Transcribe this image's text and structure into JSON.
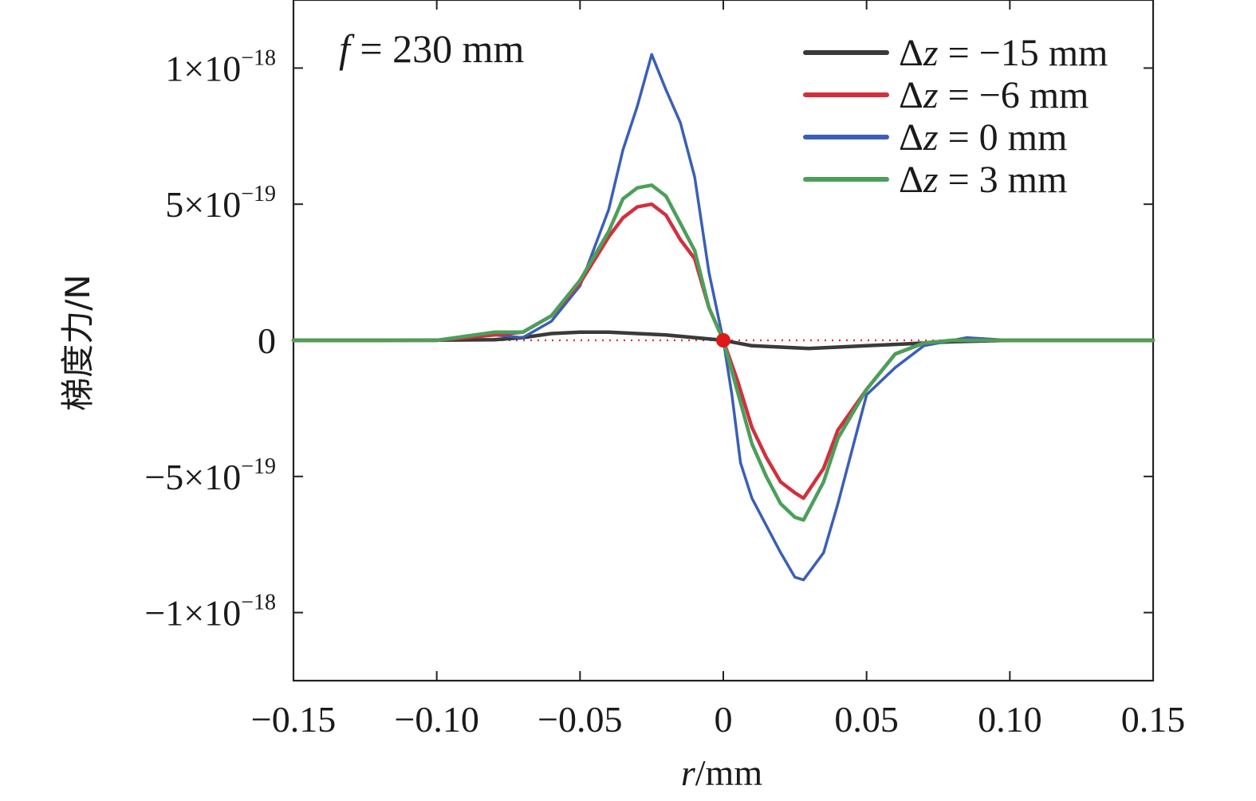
{
  "chart_data": {
    "type": "line",
    "annotation": {
      "f_symbol": "f",
      "f_text": " = 230 mm"
    },
    "xlabel": {
      "var": "r",
      "unit": "/mm"
    },
    "ylabel": "梯度力/N",
    "xlim": [
      -0.15,
      0.15
    ],
    "ylim": [
      -1.25e-18,
      1.25e-18
    ],
    "x_ticks": [
      -0.15,
      -0.1,
      -0.05,
      0,
      0.05,
      0.1,
      0.15
    ],
    "x_tick_labels": [
      "−0.15",
      "−0.10",
      "−0.05",
      "0",
      "0.05",
      "0.10",
      "0.15"
    ],
    "y_ticks": [
      {
        "value": 1e-18,
        "mantissa": "1×10",
        "exp": "−18"
      },
      {
        "value": 5e-19,
        "mantissa": "5×10",
        "exp": "−19"
      },
      {
        "value": 0,
        "mantissa": "0",
        "exp": ""
      },
      {
        "value": -5e-19,
        "mantissa": "−5×10",
        "exp": "−19"
      },
      {
        "value": -1e-18,
        "mantissa": "−1×10",
        "exp": "−18"
      }
    ],
    "legend_position": "top-right",
    "reference_line": {
      "y": 0,
      "style": "dotted",
      "color": "#e03030"
    },
    "marker": {
      "x": 0,
      "y": 0,
      "color": "#e01818"
    },
    "series": [
      {
        "name": "Δz = −15 mm",
        "legend_var": "Δz",
        "legend_value": " = −15 mm",
        "color": "#3a3a3a",
        "x": [
          -0.15,
          -0.12,
          -0.1,
          -0.08,
          -0.07,
          -0.06,
          -0.05,
          -0.04,
          -0.03,
          -0.02,
          -0.01,
          -0.005,
          0,
          0.005,
          0.01,
          0.02,
          0.03,
          0.04,
          0.05,
          0.06,
          0.07,
          0.08,
          0.1,
          0.12,
          0.15
        ],
        "y": [
          0,
          0,
          1e-21,
          2e-21,
          1e-20,
          2.5e-20,
          3e-20,
          3e-20,
          2.5e-20,
          2e-20,
          1e-20,
          5e-21,
          0,
          -1e-20,
          -2e-20,
          -2.5e-20,
          -3e-20,
          -2.5e-20,
          -2e-20,
          -1.5e-20,
          -1e-20,
          -5e-21,
          0,
          0,
          0
        ]
      },
      {
        "name": "Δz = −6 mm",
        "legend_var": "Δz",
        "legend_value": " = −6 mm",
        "color": "#d0313f",
        "x": [
          -0.15,
          -0.12,
          -0.1,
          -0.08,
          -0.07,
          -0.06,
          -0.05,
          -0.04,
          -0.035,
          -0.03,
          -0.025,
          -0.02,
          -0.015,
          -0.01,
          -0.005,
          0,
          0.005,
          0.01,
          0.015,
          0.02,
          0.025,
          0.028,
          0.035,
          0.04,
          0.05,
          0.06,
          0.07,
          0.08,
          0.1,
          0.12,
          0.15
        ],
        "y": [
          0,
          0,
          0,
          2e-20,
          3e-20,
          9e-20,
          2.1e-19,
          3.8e-19,
          4.5e-19,
          4.9e-19,
          5e-19,
          4.6e-19,
          3.7e-19,
          3e-19,
          1.2e-19,
          0,
          -1.5e-19,
          -3.2e-19,
          -4.3e-19,
          -5.2e-19,
          -5.6e-19,
          -5.8e-19,
          -4.7e-19,
          -3.3e-19,
          -1.8e-19,
          -5e-20,
          -1e-20,
          0,
          0,
          0,
          0
        ]
      },
      {
        "name": "Δz = 0 mm",
        "legend_var": "Δz",
        "legend_value": " = 0 mm",
        "color": "#3b5fb5",
        "x": [
          -0.15,
          -0.12,
          -0.1,
          -0.08,
          -0.07,
          -0.06,
          -0.05,
          -0.04,
          -0.035,
          -0.03,
          -0.025,
          -0.02,
          -0.015,
          -0.01,
          -0.005,
          0,
          0.003,
          0.006,
          0.01,
          0.015,
          0.02,
          0.025,
          0.028,
          0.035,
          0.04,
          0.05,
          0.06,
          0.07,
          0.08,
          0.085,
          0.1,
          0.12,
          0.15
        ],
        "y": [
          0,
          0,
          0,
          2e-20,
          1e-20,
          7e-20,
          2e-19,
          4.8e-19,
          7e-19,
          8.6e-19,
          1.05e-18,
          9.2e-19,
          8e-19,
          6e-19,
          2.5e-19,
          0,
          -2e-19,
          -4.5e-19,
          -5.8e-19,
          -6.8e-19,
          -7.8e-19,
          -8.7e-19,
          -8.8e-19,
          -7.8e-19,
          -6e-19,
          -2e-19,
          -1e-19,
          -2e-20,
          0,
          1e-20,
          0,
          0,
          0
        ]
      },
      {
        "name": "Δz = 3 mm",
        "legend_var": "Δz",
        "legend_value": " = 3 mm",
        "color": "#4c9f5a",
        "x": [
          -0.15,
          -0.12,
          -0.1,
          -0.08,
          -0.07,
          -0.06,
          -0.05,
          -0.04,
          -0.035,
          -0.03,
          -0.025,
          -0.02,
          -0.015,
          -0.01,
          -0.005,
          0,
          0.005,
          0.01,
          0.015,
          0.02,
          0.025,
          0.028,
          0.035,
          0.04,
          0.05,
          0.06,
          0.07,
          0.08,
          0.1,
          0.12,
          0.15
        ],
        "y": [
          0,
          0,
          0,
          3e-20,
          3e-20,
          9e-20,
          2.2e-19,
          4e-19,
          5.2e-19,
          5.6e-19,
          5.7e-19,
          5.3e-19,
          4.3e-19,
          3.3e-19,
          1.2e-19,
          0,
          -1.9e-19,
          -3.8e-19,
          -5e-19,
          -6e-19,
          -6.5e-19,
          -6.6e-19,
          -5.2e-19,
          -3.6e-19,
          -1.8e-19,
          -5e-20,
          -1e-20,
          0,
          0,
          0,
          0
        ]
      }
    ]
  }
}
